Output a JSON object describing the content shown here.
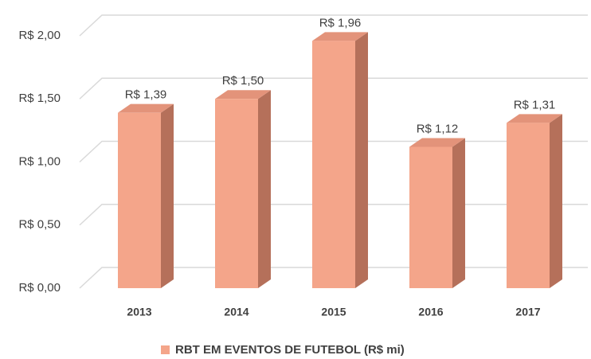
{
  "chart_data": {
    "type": "bar",
    "categories": [
      "2013",
      "2014",
      "2015",
      "2016",
      "2017"
    ],
    "series": [
      {
        "name": "RBT EM EVENTOS DE FUTEBOL (R$ mi)",
        "color": "#f4a58a",
        "values": [
          1.39,
          1.5,
          1.96,
          1.12,
          1.31
        ],
        "value_labels": [
          "R$ 1,39",
          "R$ 1,50",
          "R$ 1,96",
          "R$ 1,12",
          "R$ 1,31"
        ]
      }
    ],
    "ylim": [
      0,
      2
    ],
    "yticks": [
      {
        "value": 0,
        "label": "R$ 0,00"
      },
      {
        "value": 0.5,
        "label": "R$ 0,50"
      },
      {
        "value": 1,
        "label": "R$ 1,00"
      },
      {
        "value": 1.5,
        "label": "R$ 1,50"
      },
      {
        "value": 2,
        "label": "R$ 2,00"
      }
    ],
    "grid": true,
    "legend": "bottom"
  }
}
